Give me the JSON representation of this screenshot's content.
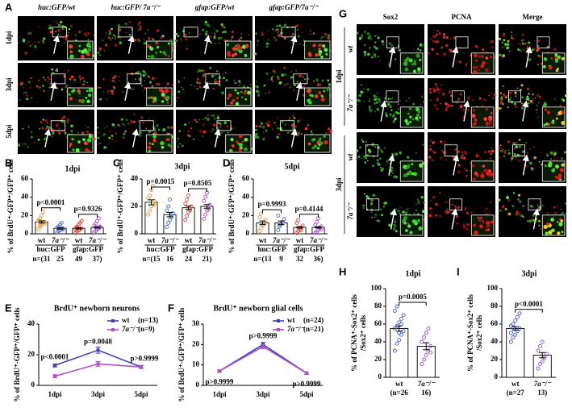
{
  "panel_A": {
    "letter": "A",
    "columns": [
      "huc:GFP/wt",
      "huc:GFP/ 7a⁻/⁻",
      "gfap:GFP/wt",
      "gfap:GFP/7a⁻/⁻"
    ],
    "rows": [
      "1dpi",
      "3dpi",
      "5dpi"
    ]
  },
  "panel_G": {
    "letter": "G",
    "columns": [
      "Sox2",
      "PCNA",
      "Merge"
    ],
    "rows": [
      "wt",
      "7a⁻/⁻",
      "wt",
      "7a⁻/⁻"
    ],
    "groups": [
      "1dpi",
      "3dpi"
    ]
  },
  "panel_B": {
    "type": "bar",
    "letter": "B",
    "title": "1dpi",
    "ylabel": "% of BrdU⁺-GFP⁺/GFP⁺ cells",
    "categories": [
      "wt",
      "7a⁻/⁻",
      "wt",
      "7a⁻/⁻"
    ],
    "groups": [
      "huc:GFP",
      "gfap:GFP"
    ],
    "n_labels": [
      "n=(31",
      "25",
      "49",
      "37)"
    ],
    "values": [
      13,
      6,
      6,
      7
    ],
    "errors": [
      1.2,
      0.8,
      0.7,
      0.8
    ],
    "colors": [
      "#f0962e",
      "#4a6fd0",
      "#e5443a",
      "#a24fc0"
    ],
    "points": [
      [
        5,
        8,
        10,
        12,
        13,
        15,
        17,
        20,
        24,
        11,
        14,
        9
      ],
      [
        2,
        3,
        4,
        5,
        6,
        7,
        8,
        10,
        12,
        5
      ],
      [
        1,
        3,
        4,
        5,
        6,
        7,
        8,
        10,
        12,
        14,
        5,
        6
      ],
      [
        2,
        3,
        5,
        6,
        7,
        9,
        11,
        14,
        17,
        8
      ]
    ],
    "p_labels": [
      "p<0.0001",
      "p=0.9326"
    ],
    "ylim": [
      0,
      60
    ],
    "yticks": [
      0,
      20,
      40,
      60
    ]
  },
  "panel_C": {
    "type": "bar",
    "letter": "C",
    "title": "3dpi",
    "ylabel": "% of BrdU⁺-GFP⁺/GFP⁺ cells",
    "categories": [
      "wt",
      "7a⁻/⁻",
      "wt",
      "7a⁻/⁻"
    ],
    "groups": [
      "huc:GFP",
      "gfap:GFP"
    ],
    "n_labels": [
      "n=(15",
      "16",
      "24",
      "21)"
    ],
    "values": [
      23,
      14,
      19,
      20
    ],
    "errors": [
      1.8,
      1.6,
      1.2,
      1.3
    ],
    "colors": [
      "#f0962e",
      "#4a6fd0",
      "#e5443a",
      "#a24fc0"
    ],
    "points": [
      [
        14,
        17,
        20,
        22,
        24,
        26,
        28,
        32,
        35,
        21
      ],
      [
        5,
        8,
        10,
        13,
        15,
        17,
        20,
        25,
        12
      ],
      [
        10,
        13,
        16,
        18,
        20,
        22,
        25,
        28,
        17
      ],
      [
        11,
        14,
        17,
        19,
        21,
        24,
        27,
        30,
        18
      ]
    ],
    "p_labels": [
      "p=0.0015",
      "p=0.8505"
    ],
    "ylim": [
      0,
      40
    ],
    "yticks": [
      0,
      20,
      40
    ]
  },
  "panel_D": {
    "type": "bar",
    "letter": "D",
    "title": "5dpi",
    "ylabel": "% of BrdU⁺-GFP⁺/GFP⁺ cells",
    "categories": [
      "wt",
      "7a⁻/⁻",
      "wt",
      "7a⁻/⁻"
    ],
    "groups": [
      "huc:GFP",
      "gfap:GFP"
    ],
    "n_labels": [
      "n=(13",
      "9",
      "32",
      "36)"
    ],
    "values": [
      12,
      12,
      7,
      7
    ],
    "errors": [
      2,
      2,
      0.8,
      0.7
    ],
    "colors": [
      "#f0962e",
      "#4a6fd0",
      "#e5443a",
      "#a24fc0"
    ],
    "points": [
      [
        3,
        6,
        9,
        12,
        15,
        18,
        22,
        10
      ],
      [
        4,
        8,
        11,
        13,
        16,
        20,
        10
      ],
      [
        1,
        3,
        5,
        7,
        9,
        12,
        15,
        6,
        4
      ],
      [
        1,
        2,
        4,
        6,
        8,
        10,
        13,
        17,
        7,
        5
      ]
    ],
    "p_labels": [
      "p=0.9993",
      "p=0.4144"
    ],
    "ylim": [
      0,
      60
    ],
    "yticks": [
      0,
      20,
      40,
      60
    ]
  },
  "panel_E": {
    "type": "line",
    "letter": "E",
    "title": "BrdU⁺ newborn neurons",
    "ylabel": "% of BrdU⁺-GFP⁺/GFP⁺ cells",
    "categories": [
      "1dpi",
      "3dpi",
      "5dpi"
    ],
    "ylim": [
      0,
      40
    ],
    "yticks": [
      0,
      20,
      40
    ],
    "series": [
      {
        "name": "wt",
        "n_label": "(n=13)",
        "color": "#3a3fc4",
        "values": [
          13,
          23,
          12
        ],
        "errors": [
          1,
          2,
          1
        ]
      },
      {
        "name": "7a⁻/⁻",
        "n_label": "(n=9)",
        "color": "#b04fc0",
        "values": [
          6,
          14,
          12
        ],
        "errors": [
          1,
          1.5,
          1
        ]
      }
    ],
    "p_labels": [
      "p<0.0001",
      "p=0.0048",
      "p>0.9999"
    ]
  },
  "panel_F": {
    "type": "line",
    "letter": "F",
    "title": "BrdU⁺ newborn glial cells",
    "ylabel": "% of BrdU⁺-GFP⁺/GFP⁺ cells",
    "categories": [
      "1dpi",
      "3dpi",
      "5dpi"
    ],
    "ylim": [
      0,
      30
    ],
    "yticks": [
      0,
      10,
      20,
      30
    ],
    "series": [
      {
        "name": "wt",
        "n_label": "(n=24)",
        "color": "#3a3fc4",
        "values": [
          7,
          20,
          6
        ],
        "errors": [
          0.5,
          1,
          0.5
        ]
      },
      {
        "name": "7a⁻/⁻",
        "n_label": "(n=21)",
        "color": "#b04fc0",
        "values": [
          7,
          19,
          6
        ],
        "errors": [
          0.5,
          1,
          0.5
        ]
      }
    ],
    "p_labels": [
      "p>0.9999",
      "p>0.9999",
      "p>0.9999"
    ]
  },
  "panel_H": {
    "type": "bar",
    "letter": "H",
    "title": "1dpi",
    "ylabel": [
      "% of PCNA⁺-Sox2⁺ cells",
      "/Sox2⁺ cells"
    ],
    "categories": [
      "wt",
      "7a⁻/⁻"
    ],
    "n_labels": [
      "(n=26",
      "16)"
    ],
    "values": [
      55,
      35
    ],
    "errors": [
      3,
      4
    ],
    "colors": [
      "#3f5fcf",
      "#9b4dca"
    ],
    "points": [
      [
        30,
        38,
        42,
        48,
        52,
        55,
        58,
        62,
        66,
        70,
        75,
        80,
        50,
        60
      ],
      [
        15,
        20,
        25,
        30,
        35,
        40,
        45,
        50,
        55,
        28
      ]
    ],
    "p_labels": [
      "p=0.0005"
    ],
    "ylim": [
      0,
      100
    ],
    "yticks": [
      0,
      20,
      40,
      60,
      80,
      100
    ]
  },
  "panel_I": {
    "type": "bar",
    "letter": "I",
    "title": "3dpi",
    "ylabel": [
      "% of PCNA⁺-Sox2⁺ cells",
      "/Sox2⁺ cells"
    ],
    "categories": [
      "wt",
      "7a⁻/⁻"
    ],
    "n_labels": [
      "(n=27",
      "13)"
    ],
    "values": [
      55,
      25
    ],
    "errors": [
      2,
      3
    ],
    "colors": [
      "#3f5fcf",
      "#9b4dca"
    ],
    "points": [
      [
        40,
        45,
        48,
        52,
        55,
        58,
        60,
        64,
        68,
        72,
        50,
        56
      ],
      [
        10,
        15,
        18,
        22,
        26,
        30,
        35,
        40
      ]
    ],
    "p_labels": [
      "p<0.0001"
    ],
    "ylim": [
      0,
      100
    ],
    "yticks": [
      0,
      20,
      40,
      60,
      80,
      100
    ]
  }
}
